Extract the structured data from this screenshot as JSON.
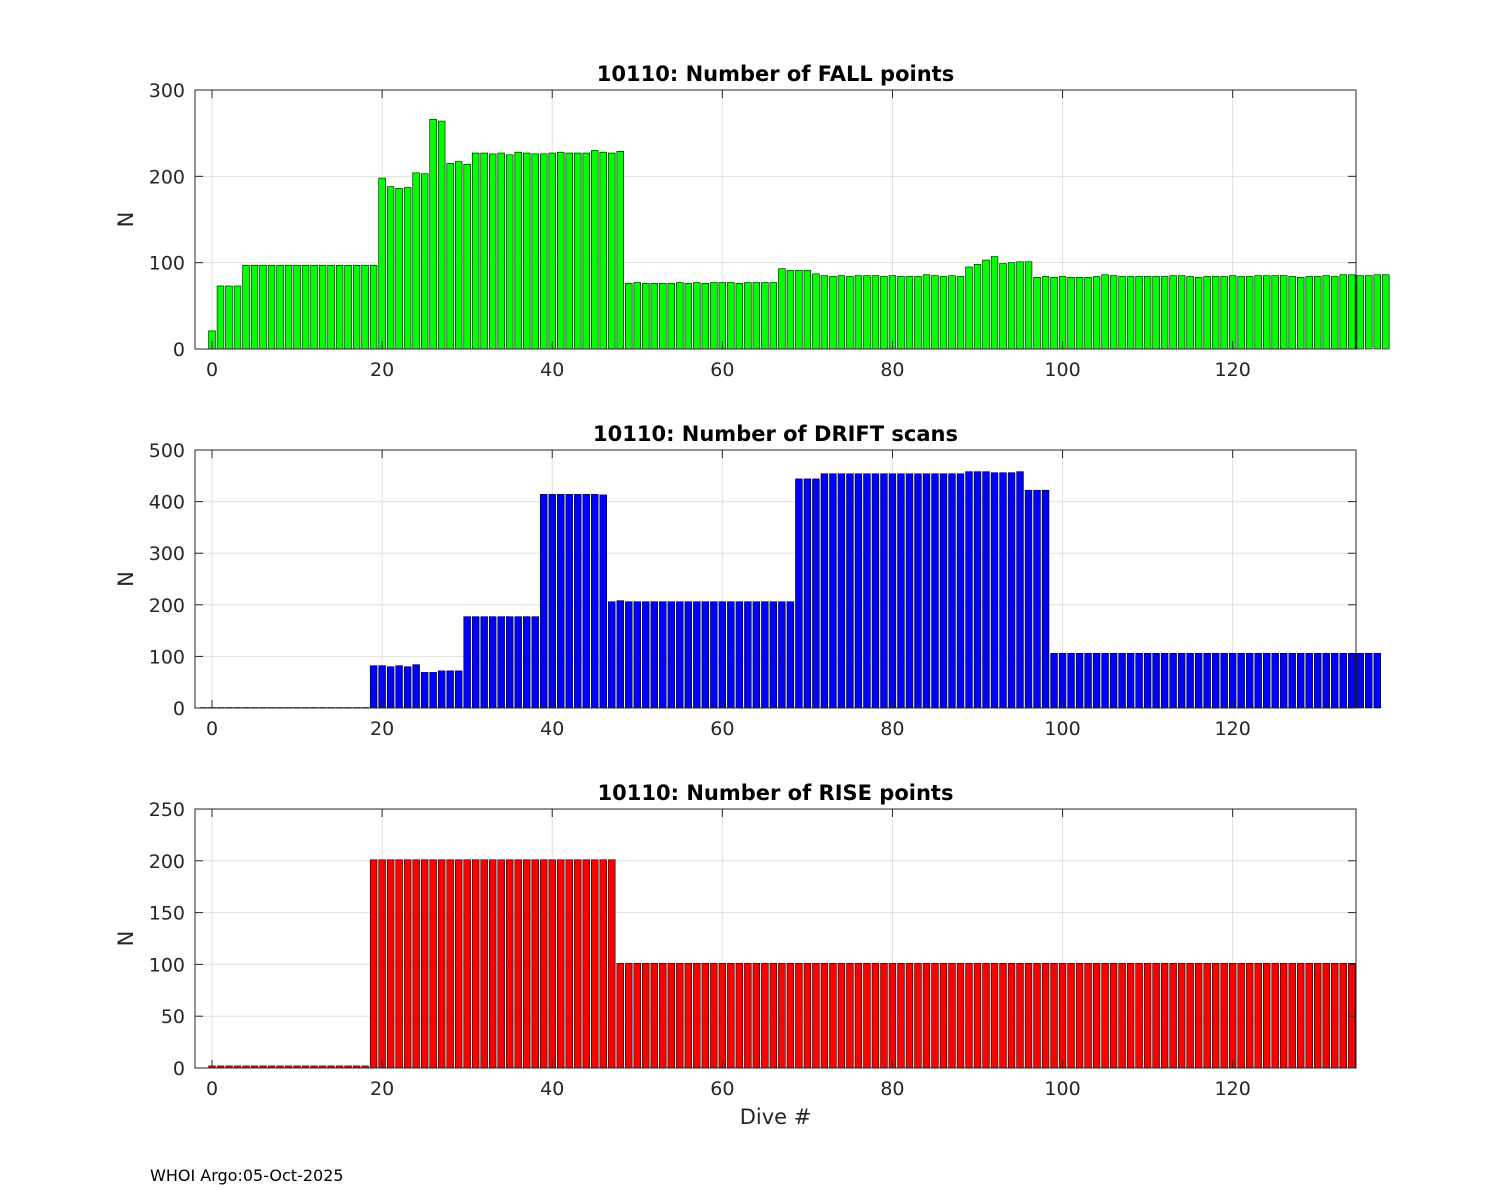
{
  "footer": "WHOI Argo:05-Oct-2025",
  "chart_data": [
    {
      "type": "bar",
      "title": "10110: Number of FALL points",
      "ylabel": "N",
      "xlabel": "",
      "color": "#00ff00",
      "xlim": [
        -2,
        134.5
      ],
      "ylim": [
        0,
        300
      ],
      "xticks": [
        0,
        20,
        40,
        60,
        80,
        100,
        120
      ],
      "yticks": [
        0,
        100,
        200,
        300
      ],
      "grid": true,
      "x_start": 0,
      "values": [
        21,
        73,
        73,
        73,
        97,
        97,
        97,
        97,
        97,
        97,
        97,
        97,
        97,
        97,
        97,
        97,
        97,
        97,
        97,
        97,
        198,
        188,
        186,
        187,
        204,
        203,
        266,
        264,
        215,
        217,
        214,
        227,
        227,
        226,
        227,
        225,
        228,
        227,
        226,
        226,
        227,
        228,
        227,
        227,
        227,
        230,
        228,
        227,
        229,
        76,
        77,
        76,
        76,
        76,
        76,
        77,
        76,
        77,
        76,
        77,
        77,
        77,
        76,
        77,
        77,
        77,
        77,
        93,
        91,
        91,
        91,
        87,
        85,
        84,
        85,
        84,
        85,
        85,
        85,
        84,
        85,
        84,
        84,
        84,
        86,
        85,
        84,
        85,
        84,
        95,
        98,
        103,
        107,
        99,
        100,
        101,
        101,
        83,
        84,
        83,
        84,
        83,
        83,
        83,
        84,
        86,
        85,
        84,
        84,
        84,
        84,
        84,
        84,
        85,
        85,
        84,
        83,
        84,
        84,
        84,
        85,
        84,
        84,
        85,
        85,
        85,
        85,
        84,
        83,
        84,
        84,
        85,
        84,
        86,
        86,
        85,
        85,
        86,
        86
      ]
    },
    {
      "type": "bar",
      "title": "10110: Number of DRIFT scans",
      "ylabel": "N",
      "xlabel": "",
      "color": "#0000ff",
      "xlim": [
        -2,
        134.5
      ],
      "ylim": [
        0,
        500
      ],
      "xticks": [
        0,
        20,
        40,
        60,
        80,
        100,
        120
      ],
      "yticks": [
        0,
        100,
        200,
        300,
        400,
        500
      ],
      "grid": true,
      "x_start": -1,
      "values": [
        1,
        1,
        1,
        1,
        1,
        1,
        1,
        1,
        1,
        1,
        1,
        1,
        1,
        1,
        1,
        1,
        1,
        1,
        1,
        1,
        82,
        82,
        80,
        82,
        80,
        84,
        69,
        69,
        72,
        72,
        72,
        177,
        177,
        177,
        177,
        177,
        177,
        177,
        177,
        177,
        414,
        414,
        414,
        414,
        414,
        414,
        414,
        413,
        206,
        208,
        206,
        206,
        206,
        206,
        206,
        206,
        206,
        206,
        206,
        206,
        206,
        206,
        206,
        206,
        206,
        206,
        206,
        206,
        206,
        206,
        444,
        444,
        444,
        454,
        454,
        454,
        454,
        454,
        454,
        454,
        454,
        454,
        454,
        454,
        454,
        454,
        454,
        454,
        454,
        454,
        458,
        458,
        458,
        456,
        456,
        456,
        458,
        422,
        422,
        422,
        106,
        106,
        106,
        106,
        106,
        106,
        106,
        106,
        106,
        106,
        106,
        106,
        106,
        106,
        106,
        106,
        106,
        106,
        106,
        106,
        106,
        106,
        106,
        106,
        106,
        106,
        106,
        106,
        106,
        106,
        106,
        106,
        106,
        106,
        106,
        106,
        106,
        106,
        106
      ]
    },
    {
      "type": "bar",
      "title": "10110: Number of RISE points",
      "ylabel": "N",
      "xlabel": "Dive #",
      "color": "#ff0000",
      "xlim": [
        -2,
        134.5
      ],
      "ylim": [
        0,
        250
      ],
      "xticks": [
        0,
        20,
        40,
        60,
        80,
        100,
        120
      ],
      "yticks": [
        0,
        50,
        100,
        150,
        200,
        250
      ],
      "grid": true,
      "x_start": 0,
      "values": [
        2,
        2,
        2,
        2,
        2,
        2,
        2,
        2,
        2,
        2,
        2,
        2,
        2,
        2,
        2,
        2,
        2,
        2,
        2,
        201,
        201,
        201,
        201,
        201,
        201,
        201,
        201,
        201,
        201,
        201,
        201,
        201,
        201,
        201,
        201,
        201,
        201,
        201,
        201,
        201,
        201,
        201,
        201,
        201,
        201,
        201,
        201,
        201,
        101,
        101,
        101,
        101,
        101,
        101,
        101,
        101,
        101,
        101,
        101,
        101,
        101,
        101,
        101,
        101,
        101,
        101,
        101,
        101,
        101,
        101,
        101,
        101,
        101,
        101,
        101,
        101,
        101,
        101,
        101,
        101,
        101,
        101,
        101,
        101,
        101,
        101,
        101,
        101,
        101,
        101,
        101,
        101,
        101,
        101,
        101,
        101,
        101,
        101,
        101,
        101,
        101,
        101,
        101,
        101,
        101,
        101,
        101,
        101,
        101,
        101,
        101,
        101,
        101,
        101,
        101,
        101,
        101,
        101,
        101,
        101,
        101,
        101,
        101,
        101,
        101,
        101,
        101,
        101,
        101,
        101,
        101,
        101,
        101,
        101,
        101
      ]
    }
  ]
}
